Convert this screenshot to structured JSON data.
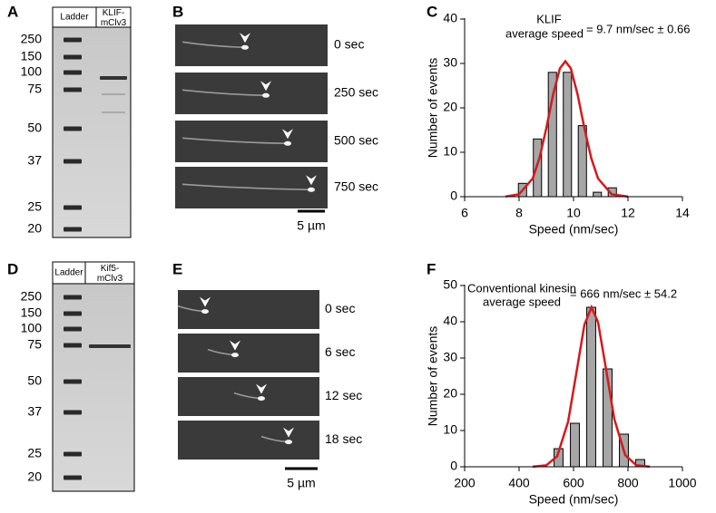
{
  "panels": [
    "A",
    "B",
    "C",
    "D",
    "E",
    "F"
  ],
  "gels": [
    {
      "lanes": [
        "Ladder",
        "KLIF-\nmClv3"
      ],
      "markers": [
        "250",
        "150",
        "100",
        "75",
        "50",
        "37",
        "25",
        "20"
      ]
    },
    {
      "lanes": [
        "Ladder",
        "Kif5-\nmClv3"
      ],
      "markers": [
        "250",
        "150",
        "100",
        "75",
        "50",
        "37",
        "25",
        "20"
      ]
    }
  ],
  "timelapse": [
    {
      "times": [
        "0 sec",
        "250 sec",
        "500 sec",
        "750 sec"
      ],
      "scale": "5 µm"
    },
    {
      "times": [
        "0 sec",
        "6 sec",
        "12 sec",
        "18 sec"
      ],
      "scale": "5 µm"
    }
  ],
  "chart_data": [
    {
      "type": "histogram",
      "annotations": [
        "KLIF",
        "average speed",
        "= 9.7 nm/sec ± 0.66"
      ],
      "x_label": "Speed (nm/sec)",
      "y_label": "Number of events",
      "bins": [
        7.3,
        7.85,
        8.4,
        8.95,
        9.5,
        10.05,
        10.6,
        11.15,
        11.7
      ],
      "values": [
        0,
        3,
        13,
        28,
        28,
        16,
        1,
        2
      ],
      "color": "#a6a6a6",
      "fit": {
        "color": "#d7191c",
        "x": [
          7.5,
          8.0,
          8.5,
          8.75,
          9.0,
          9.25,
          9.5,
          9.7,
          9.9,
          10.15,
          10.4,
          10.65,
          10.9,
          11.4,
          12.0
        ],
        "y": [
          0.04,
          0.55,
          4.1,
          8.7,
          15.4,
          23.0,
          28.9,
          30.5,
          28.9,
          23.0,
          15.4,
          8.7,
          4.1,
          0.55,
          0.02
        ]
      },
      "xlim": [
        6,
        14
      ],
      "xticks": [
        6,
        8,
        10,
        12,
        14
      ],
      "ylim": [
        0,
        40
      ],
      "yticks": [
        0,
        10,
        20,
        30,
        40
      ]
    },
    {
      "type": "histogram",
      "annotations": [
        "Conventional kinesin",
        "average speed",
        "= 666 nm/sec ± 54.2"
      ],
      "x_label": "Speed (nm/sec)",
      "y_label": "Number of events",
      "bins": [
        455,
        515,
        575,
        635,
        695,
        755,
        815,
        875
      ],
      "values": [
        0,
        5,
        12,
        44,
        27,
        9,
        2
      ],
      "color": "#a6a6a6",
      "fit": {
        "color": "#d7191c",
        "x": [
          450,
          500,
          540,
          580,
          610,
          640,
          666,
          690,
          720,
          750,
          790,
          830,
          880
        ],
        "y": [
          0.015,
          0.39,
          2.9,
          12.4,
          25.7,
          39.2,
          44,
          39.9,
          26.7,
          13.1,
          3.2,
          0.44,
          0.017
        ]
      },
      "xlim": [
        200,
        1000
      ],
      "xticks": [
        200,
        400,
        600,
        800,
        1000
      ],
      "ylim": [
        0,
        50
      ],
      "yticks": [
        0,
        10,
        20,
        30,
        40,
        50
      ]
    }
  ]
}
